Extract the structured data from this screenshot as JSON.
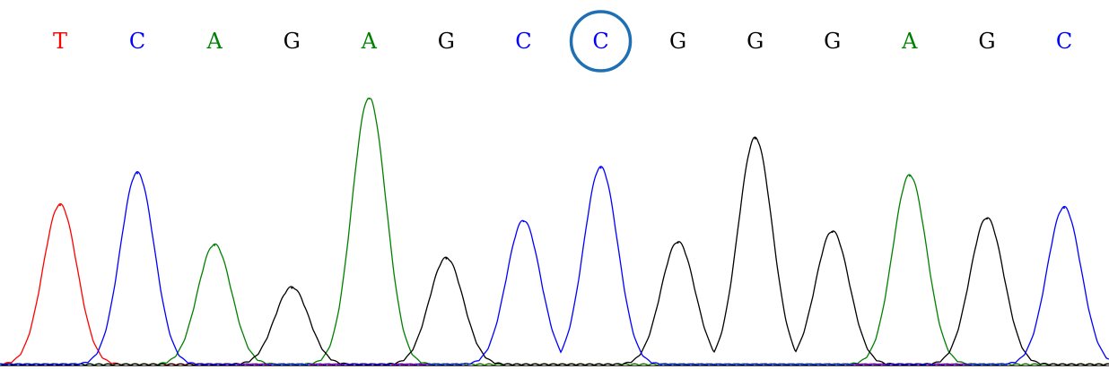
{
  "chart_data": {
    "type": "line",
    "title": "",
    "xlabel": "",
    "ylabel": "",
    "grid": false,
    "legend": "none",
    "base_colors": {
      "A": "#008000",
      "C": "#0000ff",
      "G": "#000000",
      "T": "#ff0000"
    },
    "highlight_color": "#1f6fb4",
    "highlight_index": 7,
    "ylim": [
      0,
      100
    ],
    "bases": [
      {
        "base": "T",
        "peak": 60
      },
      {
        "base": "C",
        "peak": 72
      },
      {
        "base": "A",
        "peak": 45
      },
      {
        "base": "G",
        "peak": 29
      },
      {
        "base": "A",
        "peak": 100
      },
      {
        "base": "G",
        "peak": 40
      },
      {
        "base": "C",
        "peak": 54
      },
      {
        "base": "C",
        "peak": 74
      },
      {
        "base": "G",
        "peak": 46
      },
      {
        "base": "G",
        "peak": 85
      },
      {
        "base": "G",
        "peak": 50
      },
      {
        "base": "A",
        "peak": 71
      },
      {
        "base": "G",
        "peak": 55
      },
      {
        "base": "C",
        "peak": 59
      }
    ]
  }
}
